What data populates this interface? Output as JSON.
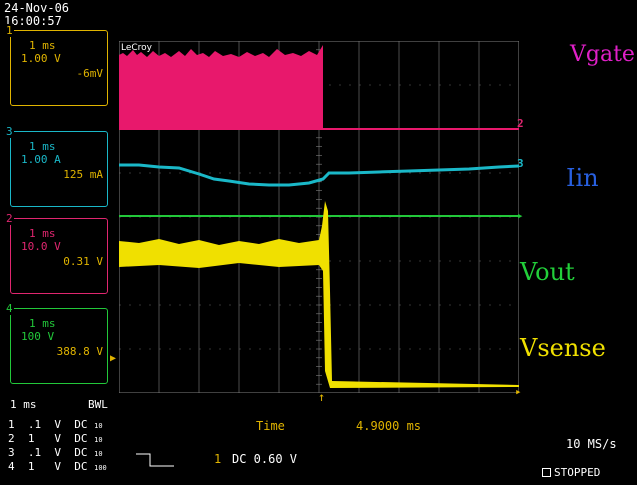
{
  "datetime": {
    "date": "24-Nov-06",
    "time": "16:00:57"
  },
  "channels": [
    {
      "id": "1",
      "timebase": "1 ms",
      "scale": "1.00 V",
      "offset": "-6mV",
      "color": "#e0b400"
    },
    {
      "id": "3",
      "timebase": "1 ms",
      "scale": "1.00 A",
      "offset": "125 mA",
      "color": "#1ab8c8"
    },
    {
      "id": "2",
      "timebase": "1 ms",
      "scale": "10.0 V",
      "offset": "0.31 V",
      "color": "#e0266f"
    },
    {
      "id": "4",
      "timebase": "1 ms",
      "scale": "100 V",
      "offset": "388.8 V",
      "color": "#22c83a"
    }
  ],
  "brand": "LeCroy",
  "signal_labels": {
    "vgate": "Vgate",
    "iin": "Iin",
    "vout": "Vout",
    "vsense": "Vsense"
  },
  "footer": {
    "timebase": "1 ms",
    "bwl": "BWL",
    "rows": [
      {
        "ch": "1",
        "volts": ".1",
        "unit": "V",
        "coupling": "DC",
        "probe": "10"
      },
      {
        "ch": "2",
        "volts": "1",
        "unit": "V",
        "coupling": "DC",
        "probe": "10"
      },
      {
        "ch": "3",
        "volts": ".1",
        "unit": "V",
        "coupling": "DC",
        "probe": "10"
      },
      {
        "ch": "4",
        "volts": "1",
        "unit": "V",
        "coupling": "DC",
        "probe": "100"
      }
    ],
    "time_label": "Time",
    "time_value": "4.9000 ms",
    "trigger_channel": "1",
    "trigger_value": "DC 0.60 V",
    "sample_rate": "10 MS/s",
    "status": "STOPPED"
  },
  "colors": {
    "ch1": "#e0b400",
    "ch2": "#e0266f",
    "ch3": "#1ab8c8",
    "ch4": "#22c83a",
    "gate_fill": "#e8186c",
    "grid": "#808080"
  }
}
